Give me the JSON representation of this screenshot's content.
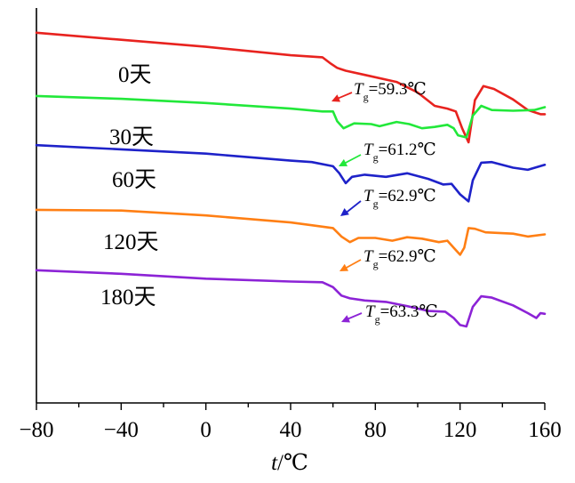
{
  "chart_data": {
    "type": "line",
    "xlabel": {
      "variable": "t",
      "unit": "/℃"
    },
    "ylabel": "",
    "xlim": [
      -80,
      160
    ],
    "x_ticks": [
      "−80",
      "−40",
      "0",
      "40",
      "80",
      "120",
      "160"
    ],
    "grid": false,
    "series": [
      {
        "name": "0天",
        "color": "#e8231f",
        "tg": {
          "symbol": "T",
          "sub": "g",
          "value": "=59.3℃"
        },
        "points": [
          [
            -80,
            8.0
          ],
          [
            -40,
            7.0
          ],
          [
            0,
            6.0
          ],
          [
            40,
            4.8
          ],
          [
            55,
            4.5
          ],
          [
            59,
            3.6
          ],
          [
            62,
            3.0
          ],
          [
            66,
            2.6
          ],
          [
            75,
            2.0
          ],
          [
            90,
            1.0
          ],
          [
            100,
            -0.5
          ],
          [
            108,
            -2.4
          ],
          [
            114,
            -2.8
          ],
          [
            118,
            -3.2
          ],
          [
            121,
            -5.6
          ],
          [
            124,
            -7.6
          ],
          [
            127,
            -1.6
          ],
          [
            131,
            0.4
          ],
          [
            136,
            0.0
          ],
          [
            145,
            -1.5
          ],
          [
            152,
            -3.0
          ],
          [
            158,
            -3.6
          ],
          [
            160,
            -3.6
          ]
        ]
      },
      {
        "name": "30天",
        "color": "#22e83a",
        "tg": {
          "symbol": "T",
          "sub": "g",
          "value": "=61.2℃"
        },
        "points": [
          [
            -80,
            -1.0
          ],
          [
            -40,
            -1.4
          ],
          [
            0,
            -2.0
          ],
          [
            40,
            -2.8
          ],
          [
            55,
            -3.2
          ],
          [
            60,
            -3.2
          ],
          [
            62,
            -4.6
          ],
          [
            65,
            -5.6
          ],
          [
            70,
            -4.9
          ],
          [
            78,
            -5.0
          ],
          [
            82,
            -5.3
          ],
          [
            90,
            -4.7
          ],
          [
            96,
            -5.0
          ],
          [
            102,
            -5.6
          ],
          [
            108,
            -5.4
          ],
          [
            114,
            -5.1
          ],
          [
            117,
            -5.6
          ],
          [
            119,
            -6.6
          ],
          [
            123,
            -6.9
          ],
          [
            126,
            -3.8
          ],
          [
            130,
            -2.4
          ],
          [
            135,
            -3.0
          ],
          [
            145,
            -3.1
          ],
          [
            155,
            -3.0
          ],
          [
            160,
            -2.6
          ]
        ]
      },
      {
        "name": "60天",
        "color": "#1e22c9",
        "tg": {
          "symbol": "T",
          "sub": "g",
          "value": "=62.9℃"
        },
        "points": [
          [
            -80,
            -8.0
          ],
          [
            -40,
            -8.6
          ],
          [
            0,
            -9.2
          ],
          [
            40,
            -10.2
          ],
          [
            50,
            -10.4
          ],
          [
            60,
            -11.0
          ],
          [
            63,
            -12.0
          ],
          [
            66,
            -13.4
          ],
          [
            69,
            -12.5
          ],
          [
            75,
            -12.2
          ],
          [
            85,
            -12.5
          ],
          [
            95,
            -12.0
          ],
          [
            105,
            -12.8
          ],
          [
            112,
            -13.6
          ],
          [
            116,
            -13.5
          ],
          [
            120,
            -15.0
          ],
          [
            124,
            -16.0
          ],
          [
            126,
            -13.0
          ],
          [
            130,
            -10.5
          ],
          [
            135,
            -10.4
          ],
          [
            145,
            -11.2
          ],
          [
            152,
            -11.5
          ],
          [
            160,
            -10.8
          ]
        ]
      },
      {
        "name": "120天",
        "color": "#ff7f14",
        "tg": {
          "symbol": "T",
          "sub": "g",
          "value": "=62.9℃"
        },
        "points": [
          [
            -80,
            -17.2
          ],
          [
            -40,
            -17.3
          ],
          [
            0,
            -18.0
          ],
          [
            40,
            -19.0
          ],
          [
            55,
            -19.6
          ],
          [
            60,
            -19.8
          ],
          [
            64,
            -21.0
          ],
          [
            68,
            -21.8
          ],
          [
            72,
            -21.2
          ],
          [
            80,
            -21.2
          ],
          [
            88,
            -21.6
          ],
          [
            95,
            -21.1
          ],
          [
            102,
            -21.3
          ],
          [
            110,
            -21.8
          ],
          [
            114,
            -21.6
          ],
          [
            117,
            -22.6
          ],
          [
            120,
            -23.6
          ],
          [
            122,
            -22.6
          ],
          [
            124,
            -19.8
          ],
          [
            127,
            -19.9
          ],
          [
            132,
            -20.4
          ],
          [
            145,
            -20.6
          ],
          [
            152,
            -21.0
          ],
          [
            160,
            -20.7
          ]
        ]
      },
      {
        "name": "180天",
        "color": "#8c23d6",
        "tg": {
          "symbol": "T",
          "sub": "g",
          "value": "=63.3℃"
        },
        "points": [
          [
            -80,
            -25.8
          ],
          [
            -40,
            -26.3
          ],
          [
            0,
            -27.0
          ],
          [
            40,
            -27.4
          ],
          [
            55,
            -27.5
          ],
          [
            60,
            -28.2
          ],
          [
            64,
            -29.4
          ],
          [
            68,
            -29.8
          ],
          [
            75,
            -30.1
          ],
          [
            85,
            -30.3
          ],
          [
            95,
            -30.9
          ],
          [
            105,
            -31.6
          ],
          [
            113,
            -31.7
          ],
          [
            117,
            -32.6
          ],
          [
            120,
            -33.6
          ],
          [
            123,
            -33.8
          ],
          [
            126,
            -31.0
          ],
          [
            130,
            -29.5
          ],
          [
            135,
            -29.7
          ],
          [
            145,
            -30.8
          ],
          [
            152,
            -31.9
          ],
          [
            156,
            -32.6
          ],
          [
            158,
            -31.9
          ],
          [
            160,
            -32.0
          ]
        ]
      }
    ]
  }
}
